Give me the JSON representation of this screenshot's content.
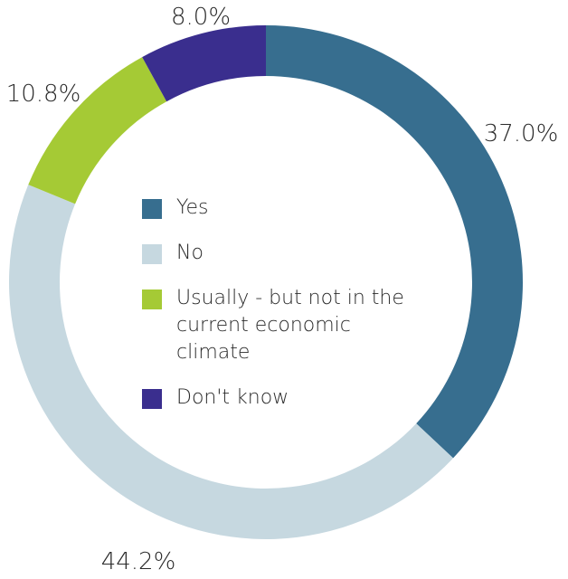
{
  "chart_data": {
    "type": "pie",
    "donut": true,
    "categories": [
      "Yes",
      "No",
      "Usually - but not in the current economic climate",
      "Don't know"
    ],
    "values": [
      37.0,
      44.2,
      10.8,
      8.0
    ],
    "value_labels": [
      "37.0%",
      "44.2%",
      "10.8%",
      "8.0%"
    ],
    "colors": [
      "#376E8F",
      "#C6D8E0",
      "#A5CA35",
      "#3A2E8E"
    ],
    "legend_position": "center",
    "start_angle": "top",
    "direction": "clockwise"
  }
}
